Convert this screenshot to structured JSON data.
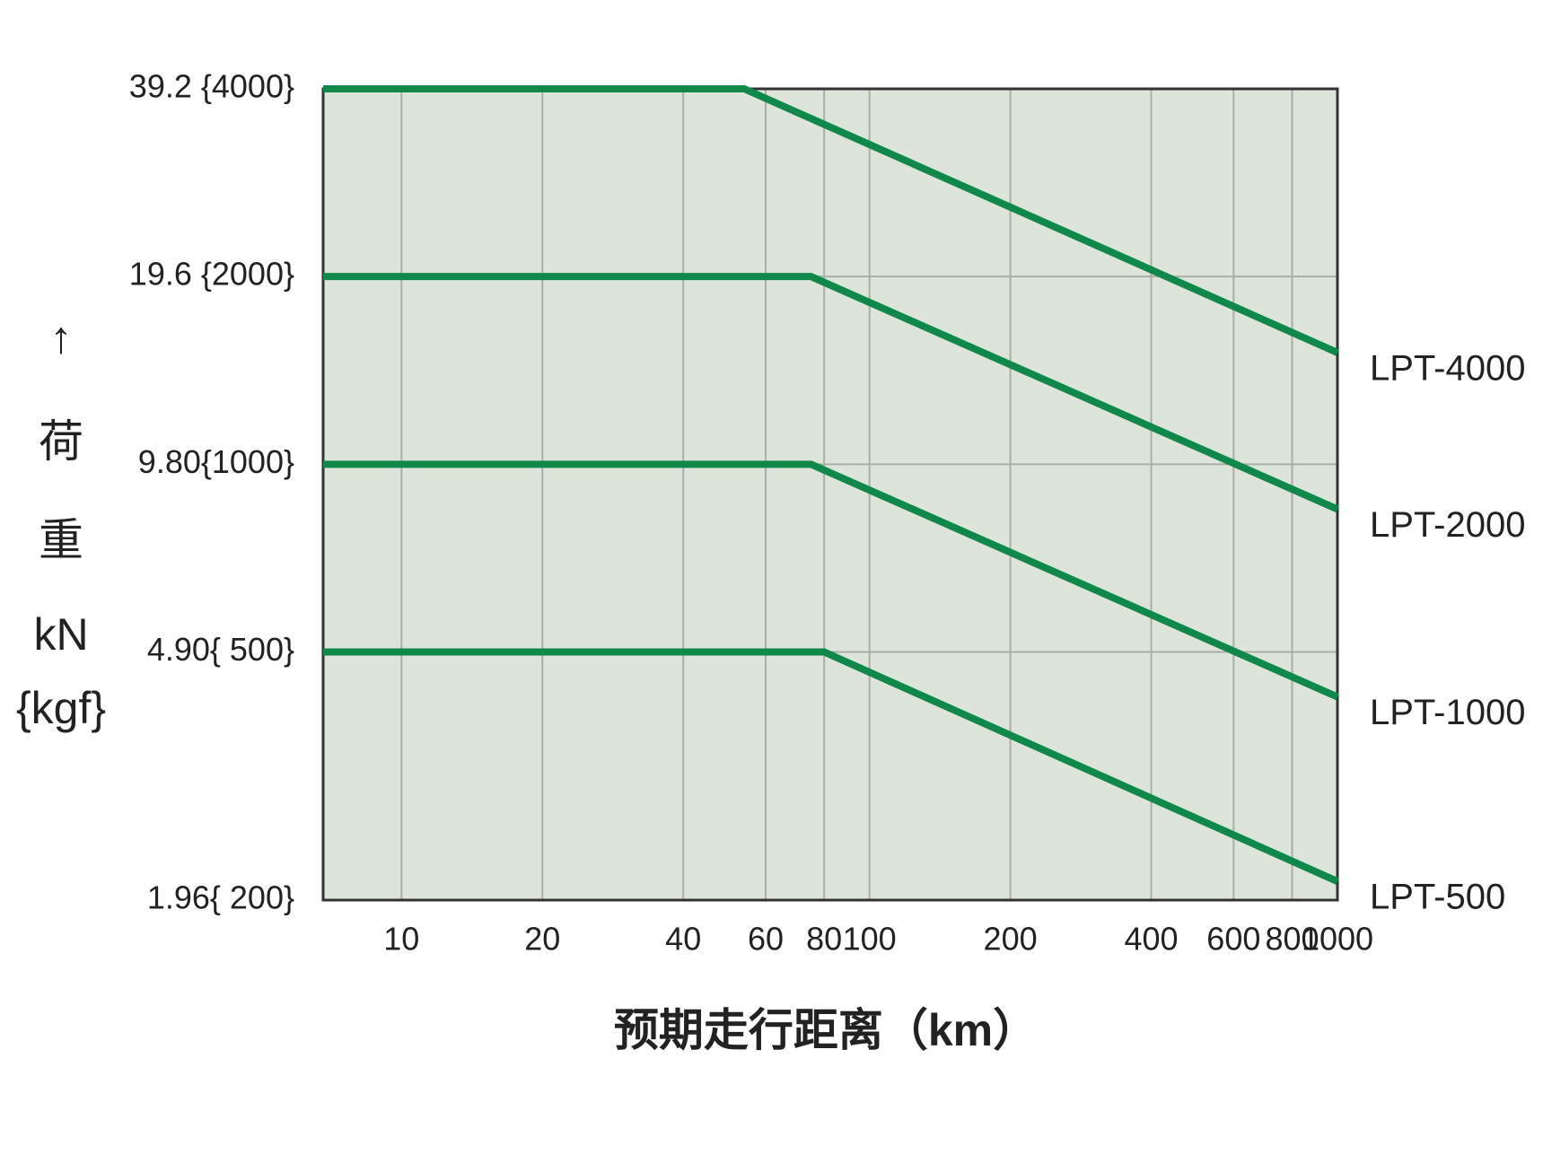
{
  "chart_data": {
    "type": "line",
    "x_label": "预期走行距离（km）",
    "y_label": [
      "↑",
      "荷",
      "重",
      "kN",
      "{kgf}"
    ],
    "xscale": "log",
    "yscale": "log",
    "grid": true,
    "xlim": [
      6.8,
      1000
    ],
    "ylim": [
      1.96,
      39.2
    ],
    "xticks": [
      10,
      20,
      40,
      60,
      80,
      100,
      200,
      400,
      600,
      800,
      1000
    ],
    "yticks": [
      {
        "value": 39.2,
        "label": "39.2 {4000}"
      },
      {
        "value": 19.6,
        "label": "19.6 {2000}"
      },
      {
        "value": 9.8,
        "label": "9.80{1000}"
      },
      {
        "value": 4.9,
        "label": "4.90{ 500}"
      },
      {
        "value": 1.96,
        "label": "1.96{ 200}"
      }
    ],
    "series": [
      {
        "name": "LPT-4000",
        "color": "#10884a",
        "x": [
          6.8,
          54,
          1000
        ],
        "values": [
          39.2,
          39.2,
          14.8
        ]
      },
      {
        "name": "LPT-2000",
        "color": "#10884a",
        "x": [
          6.8,
          75,
          1000
        ],
        "values": [
          19.6,
          19.6,
          8.3
        ]
      },
      {
        "name": "LPT-1000",
        "color": "#10884a",
        "x": [
          6.8,
          75,
          1000
        ],
        "values": [
          9.8,
          9.8,
          4.15
        ]
      },
      {
        "name": "LPT-500",
        "color": "#10884a",
        "x": [
          6.8,
          80,
          1000
        ],
        "values": [
          4.9,
          4.9,
          2.1
        ]
      }
    ]
  }
}
